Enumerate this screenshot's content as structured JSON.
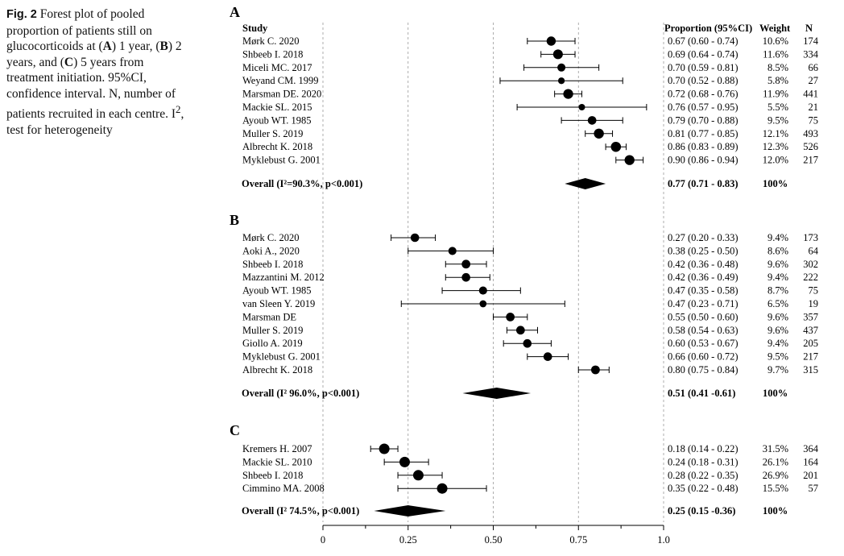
{
  "caption": {
    "label": "Fig. 2",
    "text_1": " Forest plot of pooled proportion of patients still on glucocorticoids at (",
    "bold_a": "A",
    "text_2": ") 1 year, (",
    "bold_b": "B",
    "text_3": ") 2 years, and (",
    "bold_c": "C",
    "text_4": ") 5 years from treatment initiation. 95%CI, confidence interval. N, number of patients recruited in each centre. I",
    "sup": "2",
    "text_5": ", test for heterogeneity"
  },
  "headers": {
    "study": "Study",
    "proportion": "Proportion (95%CI)",
    "weight": "Weight",
    "n": "N"
  },
  "chart_data": {
    "type": "forest",
    "xlim": [
      0,
      1.0
    ],
    "x_ticks": [
      {
        "value": 0,
        "label": "0"
      },
      {
        "value": 0.25,
        "label": "0.25"
      },
      {
        "value": 0.5,
        "label": "0.50"
      },
      {
        "value": 0.75,
        "label": "0.75"
      },
      {
        "value": 1.0,
        "label": "1.0"
      }
    ],
    "panels": [
      {
        "label": "A",
        "studies": [
          {
            "study": "Mørk C. 2020",
            "est": 0.67,
            "lo": 0.6,
            "hi": 0.74,
            "ci_text": "0.67  (0.60 - 0.74)",
            "weight": "10.6%",
            "n": "174"
          },
          {
            "study": "Shbeeb I. 2018",
            "est": 0.69,
            "lo": 0.64,
            "hi": 0.74,
            "ci_text": "0.69  (0.64 - 0.74)",
            "weight": "11.6%",
            "n": "334"
          },
          {
            "study": "Miceli MC. 2017",
            "est": 0.7,
            "lo": 0.59,
            "hi": 0.81,
            "ci_text": "0.70  (0.59 - 0.81)",
            "weight": "8.5%",
            "n": "66"
          },
          {
            "study": "Weyand CM. 1999",
            "est": 0.7,
            "lo": 0.52,
            "hi": 0.88,
            "ci_text": "0.70  (0.52 - 0.88)",
            "weight": "5.8%",
            "n": "27"
          },
          {
            "study": "Marsman DE. 2020",
            "est": 0.72,
            "lo": 0.68,
            "hi": 0.76,
            "ci_text": "0.72  (0.68 - 0.76)",
            "weight": "11.9%",
            "n": "441"
          },
          {
            "study": "Mackie SL. 2015",
            "est": 0.76,
            "lo": 0.57,
            "hi": 0.95,
            "ci_text": "0.76  (0.57 - 0.95)",
            "weight": "5.5%",
            "n": "21"
          },
          {
            "study": "Ayoub WT. 1985",
            "est": 0.79,
            "lo": 0.7,
            "hi": 0.88,
            "ci_text": "0.79  (0.70 - 0.88)",
            "weight": "9.5%",
            "n": "75"
          },
          {
            "study": "Muller S. 2019",
            "est": 0.81,
            "lo": 0.77,
            "hi": 0.85,
            "ci_text": "0.81  (0.77 - 0.85)",
            "weight": "12.1%",
            "n": "493"
          },
          {
            "study": "Albrecht K. 2018",
            "est": 0.86,
            "lo": 0.83,
            "hi": 0.89,
            "ci_text": "0.86  (0.83 - 0.89)",
            "weight": "12.3%",
            "n": "526"
          },
          {
            "study": "Myklebust G. 2001",
            "est": 0.9,
            "lo": 0.86,
            "hi": 0.94,
            "ci_text": "0.90  (0.86 - 0.94)",
            "weight": "12.0%",
            "n": "217"
          }
        ],
        "overall": {
          "label": "Overall  (I²=90.3%, p<0.001)",
          "est": 0.77,
          "lo": 0.71,
          "hi": 0.83,
          "ci_text": "0.77  (0.71 - 0.83)",
          "weight": "100%"
        }
      },
      {
        "label": "B",
        "studies": [
          {
            "study": "Mørk C. 2020",
            "est": 0.27,
            "lo": 0.2,
            "hi": 0.33,
            "ci_text": "0.27  (0.20 - 0.33)",
            "weight": "9.4%",
            "n": "173"
          },
          {
            "study": "Aoki A., 2020",
            "est": 0.38,
            "lo": 0.25,
            "hi": 0.5,
            "ci_text": "0.38  (0.25 - 0.50)",
            "weight": "8.6%",
            "n": "64"
          },
          {
            "study": "Shbeeb I. 2018",
            "est": 0.42,
            "lo": 0.36,
            "hi": 0.48,
            "ci_text": "0.42  (0.36 - 0.48)",
            "weight": "9.6%",
            "n": "302"
          },
          {
            "study": "Mazzantini M. 2012",
            "est": 0.42,
            "lo": 0.36,
            "hi": 0.49,
            "ci_text": "0.42  (0.36 - 0.49)",
            "weight": "9.4%",
            "n": "222"
          },
          {
            "study": "Ayoub WT. 1985",
            "est": 0.47,
            "lo": 0.35,
            "hi": 0.58,
            "ci_text": "0.47  (0.35 - 0.58)",
            "weight": "8.7%",
            "n": "75"
          },
          {
            "study": "van Sleen Y. 2019",
            "est": 0.47,
            "lo": 0.23,
            "hi": 0.71,
            "ci_text": "0.47  (0.23 - 0.71)",
            "weight": "6.5%",
            "n": "19"
          },
          {
            "study": "Marsman DE",
            "est": 0.55,
            "lo": 0.5,
            "hi": 0.6,
            "ci_text": "0.55  (0.50 - 0.60)",
            "weight": "9.6%",
            "n": "357"
          },
          {
            "study": "Muller S. 2019",
            "est": 0.58,
            "lo": 0.54,
            "hi": 0.63,
            "ci_text": "0.58  (0.54 - 0.63)",
            "weight": "9.6%",
            "n": "437"
          },
          {
            "study": "Giollo A. 2019",
            "est": 0.6,
            "lo": 0.53,
            "hi": 0.67,
            "ci_text": "0.60  (0.53 - 0.67)",
            "weight": "9.4%",
            "n": "205"
          },
          {
            "study": "Myklebust G. 2001",
            "est": 0.66,
            "lo": 0.6,
            "hi": 0.72,
            "ci_text": "0.66  (0.60 - 0.72)",
            "weight": "9.5%",
            "n": "217"
          },
          {
            "study": "Albrecht K. 2018",
            "est": 0.8,
            "lo": 0.75,
            "hi": 0.84,
            "ci_text": "0.80  (0.75 - 0.84)",
            "weight": "9.7%",
            "n": "315"
          }
        ],
        "overall": {
          "label": "Overall  (I² 96.0%, p<0.001)",
          "est": 0.51,
          "lo": 0.41,
          "hi": 0.61,
          "ci_text": "0.51   (0.41 -0.61)",
          "weight": "100%"
        }
      },
      {
        "label": "C",
        "studies": [
          {
            "study": "Kremers H. 2007",
            "est": 0.18,
            "lo": 0.14,
            "hi": 0.22,
            "ci_text": "0.18  (0.14 - 0.22)",
            "weight": "31.5%",
            "n": "364"
          },
          {
            "study": "Mackie SL. 2010",
            "est": 0.24,
            "lo": 0.18,
            "hi": 0.31,
            "ci_text": "0.24  (0.18 - 0.31)",
            "weight": "26.1%",
            "n": "164"
          },
          {
            "study": "Shbeeb I. 2018",
            "est": 0.28,
            "lo": 0.22,
            "hi": 0.35,
            "ci_text": "0.28  (0.22 - 0.35)",
            "weight": "26.9%",
            "n": "201"
          },
          {
            "study": "Cimmino MA. 2008",
            "est": 0.35,
            "lo": 0.22,
            "hi": 0.48,
            "ci_text": "0.35  (0.22 - 0.48)",
            "weight": "15.5%",
            "n": "57"
          }
        ],
        "overall": {
          "label": "Overall  (I² 74.5%, p<0.001)",
          "est": 0.25,
          "lo": 0.15,
          "hi": 0.36,
          "ci_text": "0.25 (0.15   -0.36)",
          "weight": "100%"
        }
      }
    ]
  }
}
